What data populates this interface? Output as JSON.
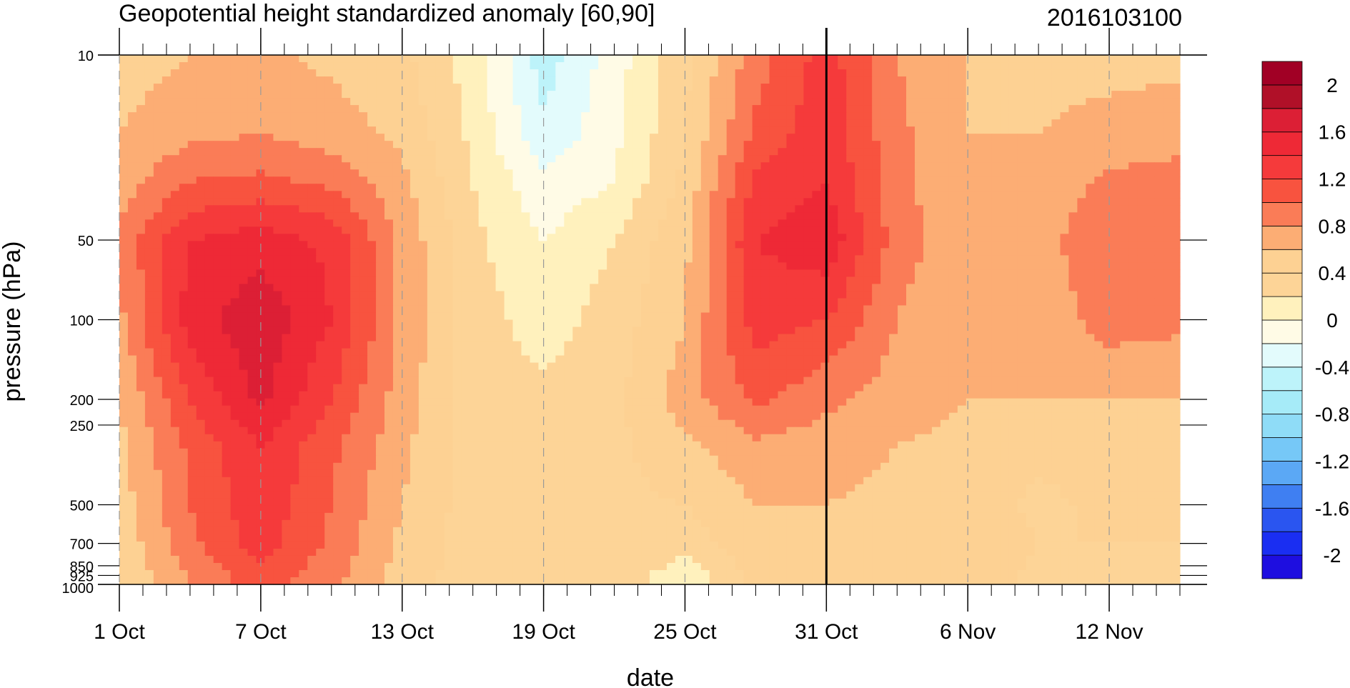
{
  "chart_data": {
    "type": "heatmap",
    "title": "Geopotential height standardized anomaly [60,90]",
    "stamp": "2016103100",
    "xlabel": "date",
    "ylabel": "pressure (hPa)",
    "x_range": [
      "2016-10-01",
      "2016-11-15"
    ],
    "x_ticks": [
      {
        "date": "2016-10-01",
        "label": "1 Oct"
      },
      {
        "date": "2016-10-07",
        "label": "7 Oct"
      },
      {
        "date": "2016-10-13",
        "label": "13 Oct"
      },
      {
        "date": "2016-10-19",
        "label": "19 Oct"
      },
      {
        "date": "2016-10-25",
        "label": "25 Oct"
      },
      {
        "date": "2016-10-31",
        "label": "31 Oct"
      },
      {
        "date": "2016-11-06",
        "label": "6 Nov"
      },
      {
        "date": "2016-11-12",
        "label": "12 Nov"
      }
    ],
    "y_scale": "log",
    "y_range": [
      1000,
      10
    ],
    "y_ticks": [
      {
        "value": 10,
        "label": "10"
      },
      {
        "value": 50,
        "label": "50"
      },
      {
        "value": 100,
        "label": "100"
      },
      {
        "value": 200,
        "label": "200"
      },
      {
        "value": 250,
        "label": "250"
      },
      {
        "value": 500,
        "label": "500"
      },
      {
        "value": 700,
        "label": "700"
      },
      {
        "value": 850,
        "label": "850"
      },
      {
        "value": 925,
        "label": "925"
      },
      {
        "value": 1000,
        "label": "1000"
      }
    ],
    "current_date_line": "2016-10-31",
    "colorbar": {
      "levels": [
        -2.2,
        -2.0,
        -1.8,
        -1.6,
        -1.4,
        -1.2,
        -1.0,
        -0.8,
        -0.6,
        -0.4,
        -0.2,
        0,
        0.2,
        0.4,
        0.6,
        0.8,
        1.0,
        1.2,
        1.4,
        1.6,
        1.8,
        2.0,
        2.2
      ],
      "colors": [
        "#1e0ee0",
        "#1a2ef2",
        "#2a55f0",
        "#3f7ff2",
        "#5ba8f5",
        "#76c8f7",
        "#8fdcf7",
        "#a6ebf8",
        "#bdf3fa",
        "#e3fbfc",
        "#fffbe6",
        "#fff1bd",
        "#fdd497",
        "#fdd193",
        "#fcad74",
        "#fa7c57",
        "#f8533f",
        "#f53a3b",
        "#ee2936",
        "#dc1f35",
        "#b01028",
        "#a10025"
      ],
      "tick_labels": [
        {
          "value": 2.0,
          "label": "2"
        },
        {
          "value": 1.6,
          "label": "1.6"
        },
        {
          "value": 1.2,
          "label": "1.2"
        },
        {
          "value": 0.8,
          "label": "0.8"
        },
        {
          "value": 0.4,
          "label": "0.4"
        },
        {
          "value": 0,
          "label": "0"
        },
        {
          "value": -0.4,
          "label": "-0.4"
        },
        {
          "value": -0.8,
          "label": "-0.8"
        },
        {
          "value": -1.2,
          "label": "-1.2"
        },
        {
          "value": -1.6,
          "label": "-1.6"
        },
        {
          "value": -2.0,
          "label": "-2"
        }
      ]
    },
    "anomaly_grid": {
      "dates": [
        "2016-10-01",
        "2016-10-04",
        "2016-10-07",
        "2016-10-10",
        "2016-10-13",
        "2016-10-16",
        "2016-10-19",
        "2016-10-22",
        "2016-10-25",
        "2016-10-28",
        "2016-10-31",
        "2016-11-03",
        "2016-11-06",
        "2016-11-09",
        "2016-11-12",
        "2016-11-15"
      ],
      "pressures": [
        10,
        20,
        30,
        50,
        100,
        200,
        300,
        500,
        700,
        1000
      ],
      "values": [
        [
          0.5,
          0.6,
          0.65,
          0.55,
          0.45,
          0.1,
          -0.5,
          -0.1,
          0.35,
          0.9,
          1.3,
          0.8,
          0.6,
          0.55,
          0.55,
          0.55
        ],
        [
          0.6,
          0.75,
          0.8,
          0.7,
          0.55,
          0.15,
          -0.35,
          -0.05,
          0.4,
          1.05,
          1.35,
          0.85,
          0.6,
          0.6,
          0.65,
          0.7
        ],
        [
          0.7,
          1.0,
          1.05,
          0.95,
          0.65,
          0.2,
          -0.15,
          0.0,
          0.45,
          1.25,
          1.4,
          0.85,
          0.65,
          0.65,
          0.85,
          0.9
        ],
        [
          0.85,
          1.4,
          1.5,
          1.35,
          0.75,
          0.25,
          0.0,
          0.2,
          0.55,
          1.4,
          1.55,
          0.9,
          0.65,
          0.7,
          1.0,
          1.0
        ],
        [
          0.75,
          1.5,
          1.75,
          1.4,
          0.75,
          0.3,
          0.1,
          0.3,
          0.6,
          1.3,
          1.2,
          0.8,
          0.6,
          0.65,
          0.9,
          0.85
        ],
        [
          0.6,
          1.2,
          1.65,
          1.2,
          0.7,
          0.3,
          0.25,
          0.35,
          0.7,
          1.05,
          0.85,
          0.7,
          0.6,
          0.6,
          0.6,
          0.6
        ],
        [
          0.55,
          1.05,
          1.4,
          1.05,
          0.65,
          0.3,
          0.3,
          0.35,
          0.55,
          0.75,
          0.7,
          0.6,
          0.55,
          0.45,
          0.5,
          0.55
        ],
        [
          0.5,
          1.0,
          1.35,
          1.0,
          0.6,
          0.3,
          0.3,
          0.35,
          0.4,
          0.6,
          0.6,
          0.55,
          0.5,
          0.35,
          0.45,
          0.5
        ],
        [
          0.45,
          0.95,
          1.3,
          0.95,
          0.55,
          0.3,
          0.3,
          0.35,
          0.3,
          0.55,
          0.55,
          0.5,
          0.55,
          0.4,
          0.4,
          0.4
        ],
        [
          0.4,
          0.8,
          1.1,
          0.85,
          0.5,
          0.3,
          0.3,
          0.35,
          0.0,
          0.45,
          0.55,
          0.5,
          0.5,
          0.35,
          0.3,
          0.3
        ]
      ]
    }
  }
}
